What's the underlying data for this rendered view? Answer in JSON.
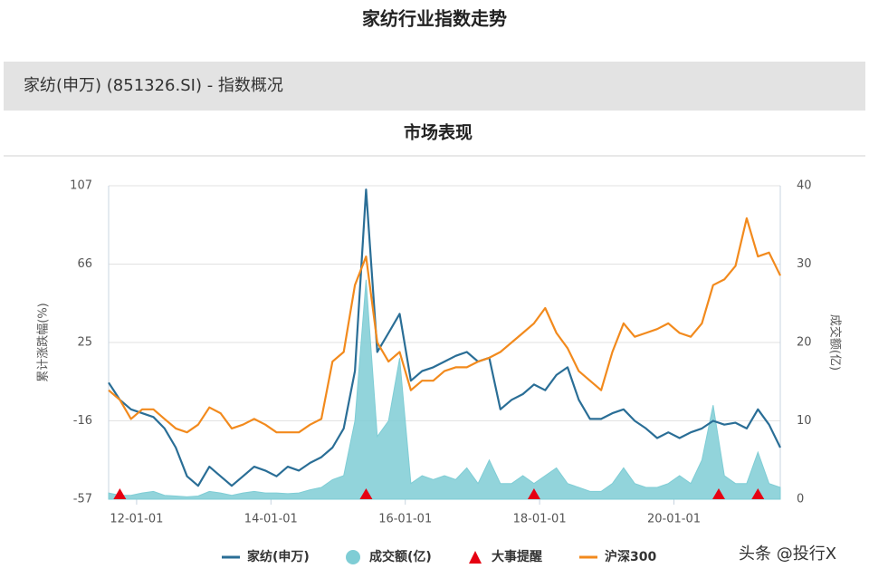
{
  "header": {
    "title": "家纺行业指数走势"
  },
  "panel": {
    "title": "家纺(申万) (851326.SI) - 指数概况",
    "section": "市场表现"
  },
  "watermark": "头条 @投行X",
  "chart_data": {
    "type": "line",
    "y_label": "累计涨跌幅(%)",
    "y2_label": "成交额(亿)",
    "x": [
      "11-08-01",
      "11-10-01",
      "11-12-01",
      "12-02-01",
      "12-04-01",
      "12-06-01",
      "12-08-01",
      "12-10-01",
      "12-12-01",
      "13-02-01",
      "13-04-01",
      "13-06-01",
      "13-08-01",
      "13-10-01",
      "13-12-01",
      "14-02-01",
      "14-04-01",
      "14-06-01",
      "14-08-01",
      "14-10-01",
      "14-12-01",
      "15-02-01",
      "15-04-01",
      "15-06-01",
      "15-08-01",
      "15-10-01",
      "15-12-01",
      "16-02-01",
      "16-04-01",
      "16-06-01",
      "16-08-01",
      "16-10-01",
      "16-12-01",
      "17-02-01",
      "17-04-01",
      "17-06-01",
      "17-08-01",
      "17-10-01",
      "17-12-01",
      "18-02-01",
      "18-04-01",
      "18-06-01",
      "18-08-01",
      "18-10-01",
      "18-12-01",
      "19-02-01",
      "19-04-01",
      "19-06-01",
      "19-08-01",
      "19-10-01",
      "19-12-01",
      "20-02-01",
      "20-04-01",
      "20-06-01",
      "20-08-01",
      "20-10-01",
      "20-12-01",
      "21-02-01",
      "21-04-01",
      "21-06-01",
      "21-08-01"
    ],
    "xlim": [
      "11-08-01",
      "21-08-01"
    ],
    "xticks": [
      "12-01-01",
      "14-01-01",
      "16-01-01",
      "18-01-01",
      "20-01-01"
    ],
    "ylim": [
      -57,
      107
    ],
    "yticks": [
      -57,
      -16,
      25,
      66,
      107
    ],
    "y2lim": [
      0,
      40
    ],
    "y2ticks": [
      0,
      10,
      20,
      30,
      40
    ],
    "grid": true,
    "series": [
      {
        "name": "家纺(申万)",
        "color": "#2a6e96",
        "values": [
          4,
          -5,
          -10,
          -12,
          -14,
          -20,
          -30,
          -45,
          -50,
          -40,
          -45,
          -50,
          -45,
          -40,
          -42,
          -45,
          -40,
          -42,
          -38,
          -35,
          -30,
          -20,
          10,
          105,
          20,
          30,
          40,
          5,
          10,
          12,
          15,
          18,
          20,
          15,
          17,
          -10,
          -5,
          -2,
          3,
          0,
          8,
          12,
          -5,
          -15,
          -15,
          -12,
          -10,
          -16,
          -20,
          -25,
          -22,
          -25,
          -22,
          -20,
          -16,
          -18,
          -17,
          -20,
          -10,
          -18,
          -30
        ]
      },
      {
        "name": "成交额(亿)",
        "color": "#7fcdd5",
        "axis": "y2",
        "values": [
          0.8,
          0.5,
          0.5,
          0.8,
          1,
          0.5,
          0.4,
          0.3,
          0.4,
          1,
          0.8,
          0.5,
          0.8,
          1,
          0.8,
          0.8,
          0.7,
          0.8,
          1.2,
          1.5,
          2.5,
          3,
          10,
          28,
          8,
          10,
          18,
          2,
          3,
          2.5,
          3,
          2.5,
          4,
          2,
          5,
          2,
          2,
          3,
          2,
          3,
          4,
          2,
          1.5,
          1,
          1,
          2,
          4,
          2,
          1.5,
          1.5,
          2,
          3,
          2,
          5,
          12,
          3,
          2,
          2,
          6,
          2,
          1.5
        ]
      },
      {
        "name": "大事提醒",
        "color": "#e60012",
        "x": [
          "11-10-01",
          "15-06-01",
          "17-12-01",
          "20-09-01",
          "21-04-01"
        ]
      },
      {
        "name": "沪深300",
        "color": "#f28a1d",
        "values": [
          0,
          -5,
          -15,
          -10,
          -10,
          -15,
          -20,
          -22,
          -18,
          -9,
          -12,
          -20,
          -18,
          -15,
          -18,
          -22,
          -22,
          -22,
          -18,
          -15,
          15,
          20,
          55,
          70,
          25,
          15,
          20,
          0,
          5,
          5,
          10,
          12,
          12,
          15,
          17,
          20,
          25,
          30,
          35,
          43,
          30,
          22,
          10,
          5,
          0,
          20,
          35,
          28,
          30,
          32,
          35,
          30,
          28,
          35,
          55,
          58,
          65,
          90,
          70,
          72,
          60
        ]
      }
    ]
  }
}
